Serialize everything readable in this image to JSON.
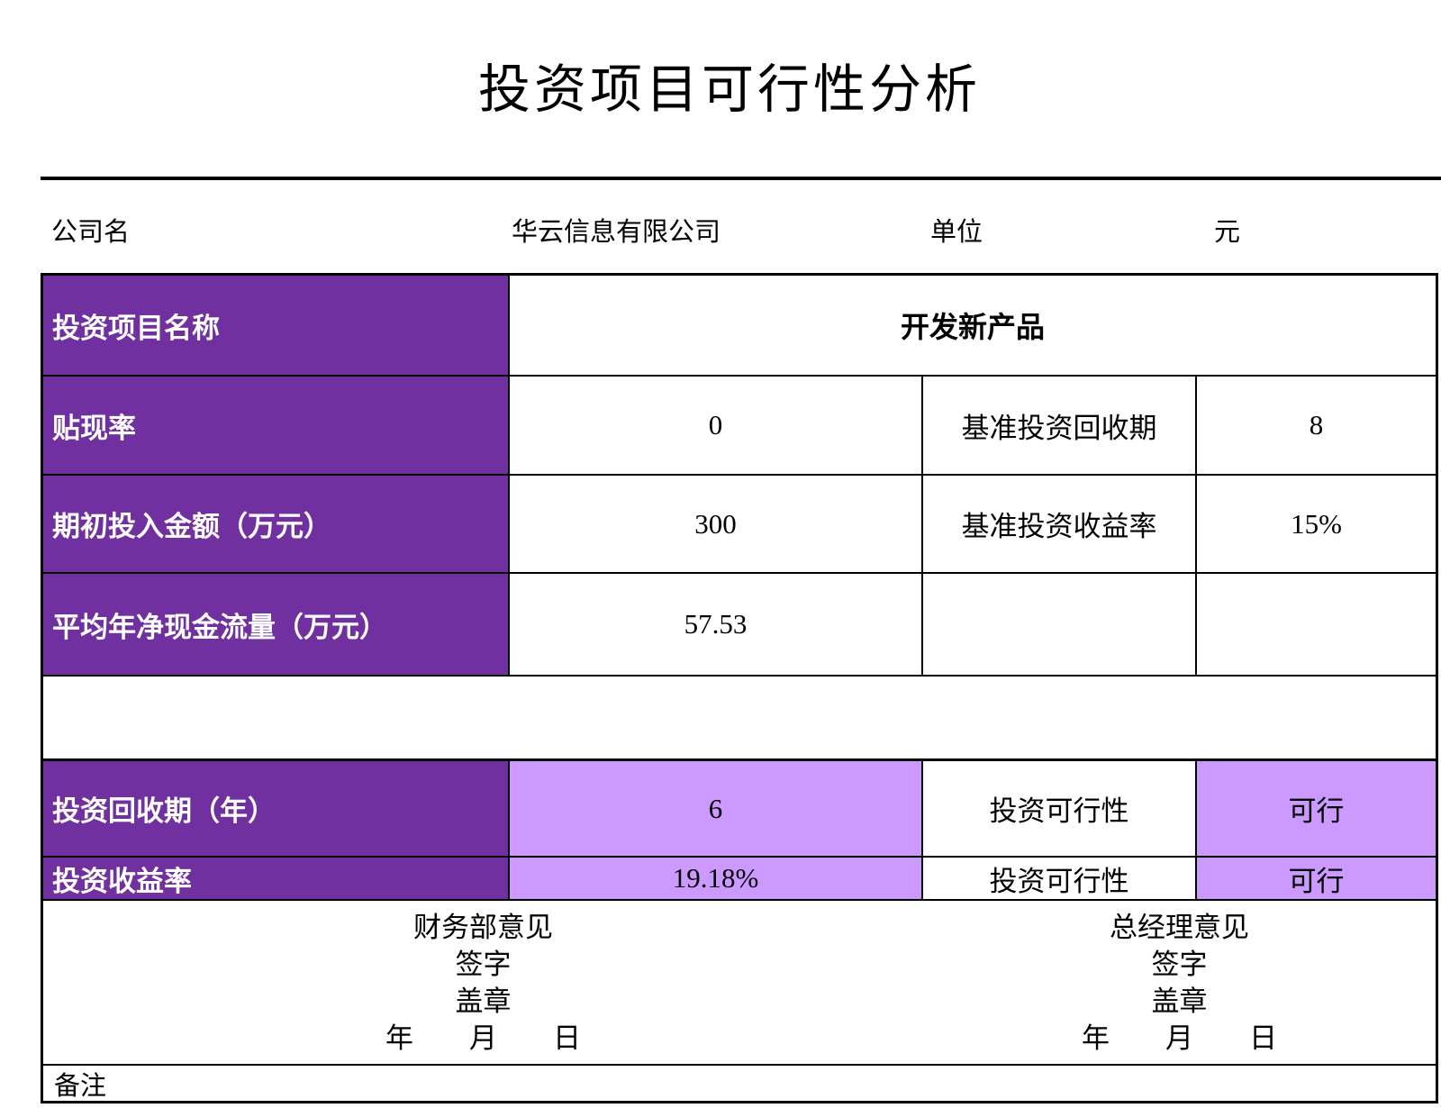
{
  "title": "投资项目可行性分析",
  "info_bar": {
    "company_label": "公司名",
    "company_name": "华云信息有限公司",
    "unit_label": "单位",
    "unit_value": "元"
  },
  "table": {
    "project_row": {
      "label": "投资项目名称",
      "value": "开发新产品"
    },
    "param_rows": [
      {
        "label": "贴现率",
        "value": "0",
        "label2": "基准投资回收期",
        "value2": "8"
      },
      {
        "label": "期初投入金额（万元）",
        "value": "300",
        "label2": "基准投资收益率",
        "value2": "15%"
      },
      {
        "label": "平均年净现金流量（万元）",
        "value": "57.53",
        "label2": "",
        "value2": ""
      }
    ],
    "result_rows": [
      {
        "label": "投资回收期（年）",
        "value": "6",
        "label2": "投资可行性",
        "value2": "可行"
      },
      {
        "label": "投资收益率",
        "value": "19.18%",
        "label2": "投资可行性",
        "value2": "可行"
      }
    ],
    "opinion_row": {
      "finance": {
        "title": "财务部意见",
        "sign": "签字",
        "seal": "盖章",
        "date": "年　　月　　日"
      },
      "manager": {
        "title": "总经理意见",
        "sign": "签字",
        "seal": "盖章",
        "date": "年　　月　　日"
      }
    },
    "remark_label": "备注"
  },
  "colors": {
    "header_fill": "#7030A0",
    "highlight_fill": "#CC99FF",
    "header_text": "#FFFFFF",
    "border": "#000000"
  }
}
